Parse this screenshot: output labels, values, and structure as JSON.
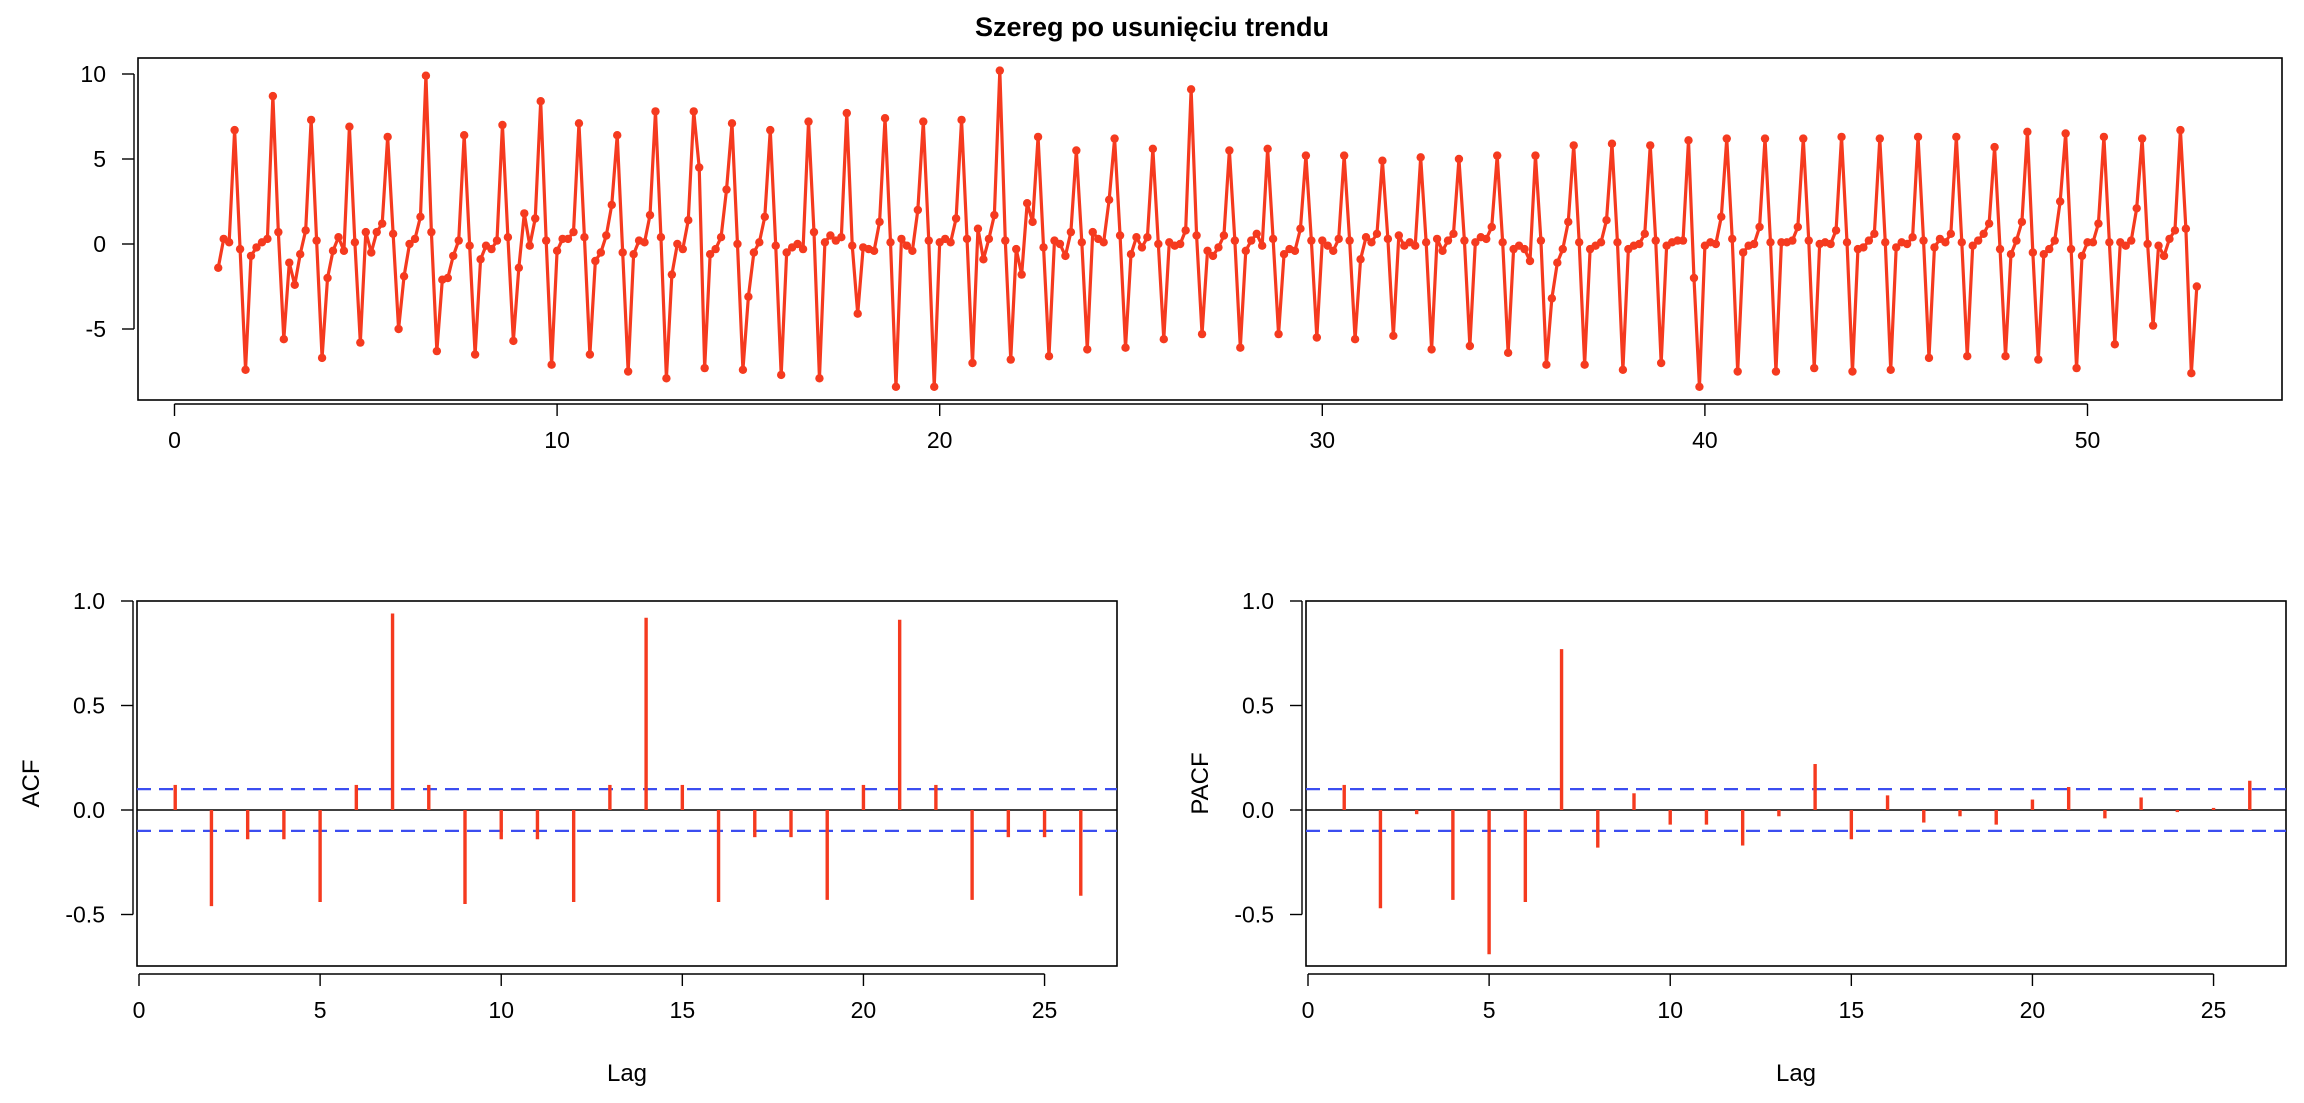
{
  "chart_data": [
    {
      "type": "line",
      "title": "Szereg po usunięciu trendu",
      "xlabel": "",
      "ylabel": "",
      "xlim": [
        0,
        55
      ],
      "ylim": [
        -9,
        11
      ],
      "xticks": [
        "0",
        "10",
        "20",
        "30",
        "40",
        "50"
      ],
      "yticks": [
        "10",
        "5",
        "0",
        "-5"
      ],
      "color": "#f53a1f",
      "markers": true,
      "series": [
        {
          "x_start": 1.142857,
          "x_step": 0.142857,
          "values": [
            -1.4,
            0.3,
            0.1,
            6.7,
            -0.3,
            -7.4,
            -0.7,
            -0.2,
            0.1,
            0.3,
            8.7,
            0.7,
            -5.6,
            -1.1,
            -2.4,
            -0.6,
            0.8,
            7.3,
            0.2,
            -6.7,
            -2.0,
            -0.4,
            0.4,
            -0.4,
            6.9,
            0.1,
            -5.8,
            0.7,
            -0.5,
            0.7,
            1.2,
            6.3,
            0.6,
            -5.0,
            -1.9,
            0.0,
            0.3,
            1.6,
            9.9,
            0.7,
            -6.3,
            -2.1,
            -2.0,
            -0.7,
            0.2,
            6.4,
            -0.1,
            -6.5,
            -0.9,
            -0.1,
            -0.3,
            0.2,
            7.0,
            0.4,
            -5.7,
            -1.4,
            1.8,
            -0.1,
            1.5,
            8.4,
            0.2,
            -7.1,
            -0.4,
            0.3,
            0.3,
            0.7,
            7.1,
            0.4,
            -6.5,
            -1.0,
            -0.5,
            0.5,
            2.3,
            6.4,
            -0.5,
            -7.5,
            -0.6,
            0.2,
            0.1,
            1.7,
            7.8,
            0.4,
            -7.9,
            -1.8,
            0.0,
            -0.3,
            1.4,
            7.8,
            4.5,
            -7.3,
            -0.6,
            -0.3,
            0.4,
            3.2,
            7.1,
            0.0,
            -7.4,
            -3.1,
            -0.5,
            0.1,
            1.6,
            6.7,
            -0.1,
            -7.7,
            -0.5,
            -0.2,
            0.0,
            -0.3,
            7.2,
            0.7,
            -7.9,
            0.1,
            0.5,
            0.2,
            0.4,
            7.7,
            -0.1,
            -4.1,
            -0.2,
            -0.3,
            -0.4,
            1.3,
            7.4,
            0.1,
            -8.4,
            0.3,
            -0.1,
            -0.4,
            2.0,
            7.2,
            0.2,
            -8.4,
            0.1,
            0.3,
            0.1,
            1.5,
            7.3,
            0.3,
            -7.0,
            0.9,
            -0.9,
            0.3,
            1.7,
            10.2,
            0.2,
            -6.8,
            -0.3,
            -1.8,
            2.4,
            1.3,
            6.3,
            -0.2,
            -6.6,
            0.2,
            0.0,
            -0.7,
            0.7,
            5.5,
            0.1,
            -6.2,
            0.7,
            0.3,
            0.1,
            2.6,
            6.2,
            0.5,
            -6.1,
            -0.6,
            0.4,
            -0.2,
            0.4,
            5.6,
            0.0,
            -5.6,
            0.1,
            -0.1,
            0.0,
            0.8,
            9.1,
            0.5,
            -5.3,
            -0.4,
            -0.7,
            -0.2,
            0.5,
            5.5,
            0.2,
            -6.1,
            -0.4,
            0.2,
            0.6,
            -0.1,
            5.6,
            0.3,
            -5.3,
            -0.6,
            -0.3,
            -0.4,
            0.9,
            5.2,
            0.2,
            -5.5,
            0.2,
            -0.1,
            -0.4,
            0.3,
            5.2,
            0.2,
            -5.6,
            -0.9,
            0.4,
            0.1,
            0.6,
            4.9,
            0.3,
            -5.4,
            0.5,
            -0.1,
            0.1,
            -0.1,
            5.1,
            0.1,
            -6.2,
            0.3,
            -0.4,
            0.2,
            0.6,
            5.0,
            0.2,
            -6.0,
            0.1,
            0.4,
            0.3,
            1.0,
            5.2,
            0.1,
            -6.4,
            -0.3,
            -0.1,
            -0.3,
            -1.0,
            5.2,
            0.2,
            -7.1,
            -3.2,
            -1.1,
            -0.3,
            1.3,
            5.8,
            0.1,
            -7.1,
            -0.3,
            -0.1,
            0.1,
            1.4,
            5.9,
            0.1,
            -7.4,
            -0.3,
            -0.1,
            0.0,
            0.6,
            5.8,
            0.2,
            -7.0,
            -0.1,
            0.1,
            0.2,
            0.2,
            6.1,
            -2.0,
            -8.4,
            -0.1,
            0.1,
            0.0,
            1.6,
            6.2,
            0.3,
            -7.5,
            -0.5,
            -0.1,
            0.0,
            1.0,
            6.2,
            0.1,
            -7.5,
            0.1,
            0.1,
            0.2,
            1.0,
            6.2,
            0.2,
            -7.3,
            0.0,
            0.1,
            0.0,
            0.8,
            6.3,
            0.1,
            -7.5,
            -0.3,
            -0.2,
            0.2,
            0.6,
            6.2,
            0.1,
            -7.4,
            -0.2,
            0.1,
            0.0,
            0.4,
            6.3,
            0.2,
            -6.7,
            -0.2,
            0.3,
            0.1,
            0.6,
            6.3,
            0.1,
            -6.6,
            -0.1,
            0.2,
            0.6,
            1.2,
            5.7,
            -0.3,
            -6.6,
            -0.6,
            0.2,
            1.3,
            6.6,
            -0.5,
            -6.8,
            -0.6,
            -0.3,
            0.2,
            2.5,
            6.5,
            -0.3,
            -7.3,
            -0.7,
            0.1,
            0.1,
            1.2,
            6.3,
            0.1,
            -5.9,
            0.1,
            -0.1,
            0.2,
            2.1,
            6.2,
            0.0,
            -4.8,
            -0.1,
            -0.7,
            0.3,
            0.8,
            6.7,
            0.9,
            -7.6,
            -2.5
          ]
        }
      ]
    },
    {
      "type": "bar",
      "title": "",
      "xlabel": "Lag",
      "ylabel": "ACF",
      "xlim": [
        0,
        27
      ],
      "ylim": [
        -0.75,
        1.0
      ],
      "xticks": [
        "0",
        "5",
        "10",
        "15",
        "20",
        "25"
      ],
      "yticks": [
        "1.0",
        "0.5",
        "0.0",
        "-0.5"
      ],
      "confidence_bound": 0.1,
      "color": "#f53a1f",
      "bound_color": "#3b4df0",
      "lags": [
        1,
        2,
        3,
        4,
        5,
        6,
        7,
        8,
        9,
        10,
        11,
        12,
        13,
        14,
        15,
        16,
        17,
        18,
        19,
        20,
        21,
        22,
        23,
        24,
        25,
        26
      ],
      "values": [
        0.12,
        -0.46,
        -0.14,
        -0.14,
        -0.44,
        0.12,
        0.94,
        0.12,
        -0.45,
        -0.14,
        -0.14,
        -0.44,
        0.12,
        0.92,
        0.12,
        -0.44,
        -0.13,
        -0.13,
        -0.43,
        0.12,
        0.91,
        0.12,
        -0.43,
        -0.13,
        -0.13,
        -0.41
      ]
    },
    {
      "type": "bar",
      "title": "",
      "xlabel": "Lag",
      "ylabel": "PACF",
      "xlim": [
        0,
        27
      ],
      "ylim": [
        -0.75,
        1.0
      ],
      "xticks": [
        "0",
        "5",
        "10",
        "15",
        "20",
        "25"
      ],
      "yticks": [
        "1.0",
        "0.5",
        "0.0",
        "-0.5"
      ],
      "confidence_bound": 0.1,
      "color": "#f53a1f",
      "bound_color": "#3b4df0",
      "lags": [
        1,
        2,
        3,
        4,
        5,
        6,
        7,
        8,
        9,
        10,
        11,
        12,
        13,
        14,
        15,
        16,
        17,
        18,
        19,
        20,
        21,
        22,
        23,
        24,
        25,
        26
      ],
      "values": [
        0.12,
        -0.47,
        -0.02,
        -0.43,
        -0.69,
        -0.44,
        0.77,
        -0.18,
        0.08,
        -0.07,
        -0.07,
        -0.17,
        -0.03,
        0.22,
        -0.14,
        0.07,
        -0.06,
        -0.03,
        -0.07,
        0.05,
        0.11,
        -0.04,
        0.06,
        -0.01,
        0.01,
        0.14
      ]
    }
  ]
}
